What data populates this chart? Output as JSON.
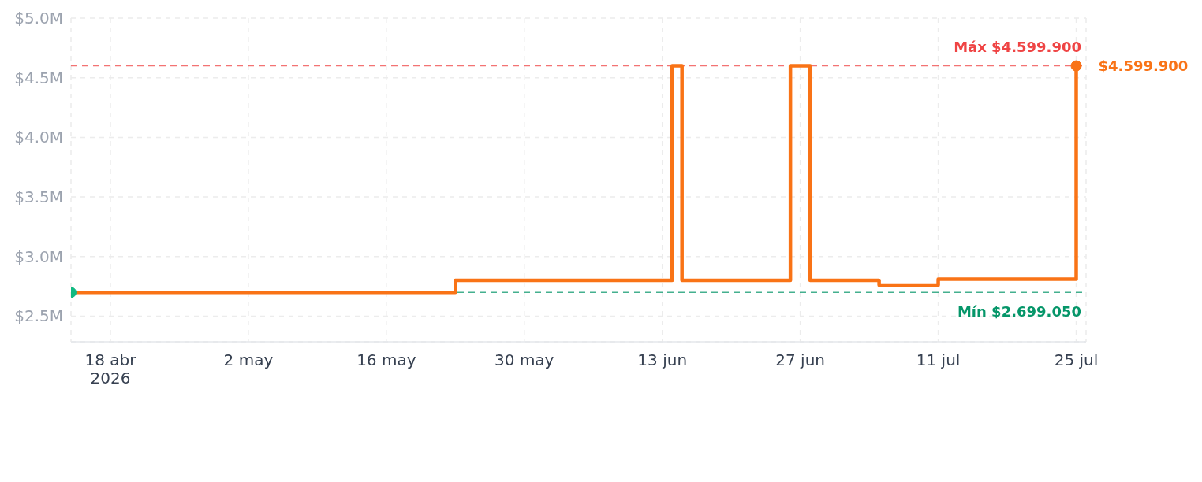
{
  "chart_data": {
    "type": "step",
    "x": [
      "2026-04-14",
      "2026-05-23",
      "2026-06-14",
      "2026-06-15",
      "2026-06-26",
      "2026-06-28",
      "2026-07-05",
      "2026-07-11",
      "2026-07-25"
    ],
    "series": [
      {
        "color": "#f97316",
        "values": [
          2699050,
          2800000,
          4599900,
          2800000,
          4599900,
          2800000,
          2760000,
          2810000,
          4599900
        ]
      },
      {
        "type": "scatter",
        "color": "#10b981",
        "x": [
          "2026-04-14"
        ],
        "values": [
          2699050
        ]
      },
      {
        "type": "scatter",
        "color": "#f97316",
        "x": [
          "2026-07-25"
        ],
        "values": [
          4599900
        ]
      }
    ],
    "xlim": [
      "2026-04-14",
      "2026-07-26"
    ],
    "xticks": [
      {
        "value": "2026-04-18",
        "label": "18 abr\n2026"
      },
      {
        "value": "2026-05-02",
        "label": "2 may"
      },
      {
        "value": "2026-05-16",
        "label": "16 may"
      },
      {
        "value": "2026-05-30",
        "label": "30 may"
      },
      {
        "value": "2026-06-13",
        "label": "13 jun"
      },
      {
        "value": "2026-06-27",
        "label": "27 jun"
      },
      {
        "value": "2026-07-11",
        "label": "11 jul"
      },
      {
        "value": "2026-07-25",
        "label": "25 jul"
      }
    ],
    "ylim": [
      2285000,
      5000000
    ],
    "yticks": [
      {
        "value": 2500000,
        "label": "$2.5M"
      },
      {
        "value": 3000000,
        "label": "$3.0M"
      },
      {
        "value": 3500000,
        "label": "$3.5M"
      },
      {
        "value": 4000000,
        "label": "$4.0M"
      },
      {
        "value": 4500000,
        "label": "$4.5M"
      },
      {
        "value": 5000000,
        "label": "$5.0M"
      }
    ],
    "grid": true,
    "ref_lines": [
      {
        "axis": "y",
        "value": 4599900,
        "label": "Máx $4.599.900",
        "color": "#ef4444",
        "line_style": "dashed"
      },
      {
        "axis": "y",
        "value": 2699050,
        "label": "Mín $2.699.050",
        "color": "#059669",
        "line_style": "dashed"
      }
    ],
    "annotations": [
      {
        "text": "$4.599.900",
        "x": "2026-07-25",
        "y": 4599900
      }
    ]
  }
}
